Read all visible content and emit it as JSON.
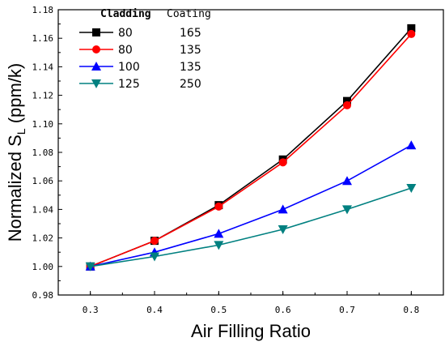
{
  "chart_data": {
    "type": "line",
    "x": [
      0.3,
      0.4,
      0.5,
      0.6,
      0.7,
      0.8
    ],
    "x_tick_labels": [
      "0.3",
      "0.4",
      "0.5",
      "0.6",
      "0.7",
      "0.8"
    ],
    "y_tick_labels": [
      "0.98",
      "1.00",
      "1.02",
      "1.04",
      "1.06",
      "1.08",
      "1.10",
      "1.12",
      "1.14",
      "1.16",
      "1.18"
    ],
    "xlabel": "Air Filling Ratio",
    "ylabel_main": "Normalized S",
    "ylabel_sub": "L",
    "ylabel_unit": " (ppm/k)",
    "xlim": [
      0.25,
      0.85
    ],
    "ylim": [
      0.98,
      1.18
    ],
    "legend_position": "top-left",
    "legend_headers": {
      "cladding": "Cladding",
      "coating": "Coating"
    },
    "series": [
      {
        "cladding": "80",
        "coating": "165",
        "color": "#000000",
        "marker": "square",
        "values": [
          1.0,
          1.018,
          1.043,
          1.075,
          1.116,
          1.167
        ]
      },
      {
        "cladding": "80",
        "coating": "135",
        "color": "#ff0000",
        "marker": "circle",
        "values": [
          1.0,
          1.018,
          1.042,
          1.073,
          1.113,
          1.163
        ]
      },
      {
        "cladding": "100",
        "coating": "135",
        "color": "#0000ff",
        "marker": "triangle-up",
        "values": [
          1.0,
          1.01,
          1.023,
          1.04,
          1.06,
          1.085
        ]
      },
      {
        "cladding": "125",
        "coating": "250",
        "color": "#008080",
        "marker": "triangle-down",
        "values": [
          1.0,
          1.007,
          1.015,
          1.026,
          1.04,
          1.055
        ]
      }
    ]
  }
}
